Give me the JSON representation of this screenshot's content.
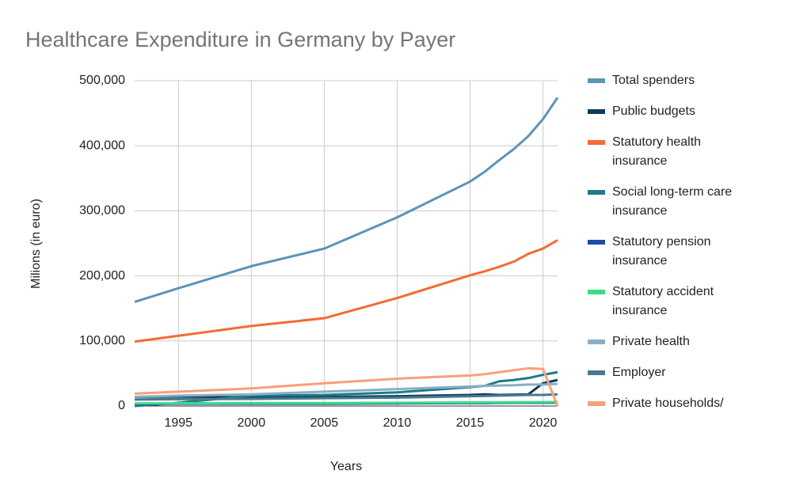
{
  "chart_data": {
    "type": "line",
    "title": "Healthcare Expenditure in Germany by Payer",
    "x_label": "Years",
    "y_label": "Milions (in euro)",
    "x": [
      1992,
      1995,
      2000,
      2005,
      2010,
      2015,
      2016,
      2017,
      2018,
      2019,
      2020,
      2021
    ],
    "xlim": [
      1992,
      2021
    ],
    "xticks": [
      1995,
      2000,
      2005,
      2010,
      2015,
      2020
    ],
    "ylim": [
      0,
      500000
    ],
    "yticks": [
      0,
      {
        "value": 100000,
        "label": "100,000"
      },
      {
        "value": 200000,
        "label": "200,000"
      },
      {
        "value": 300000,
        "label": "300,000"
      },
      {
        "value": 400000,
        "label": "400,000"
      },
      {
        "value": 500000,
        "label": "500,000"
      }
    ],
    "grid": true,
    "series": [
      {
        "name": "Total spenders",
        "color": "#5b95b5",
        "values": [
          160000,
          181000,
          215000,
          242000,
          290000,
          345000,
          360000,
          378000,
          395000,
          415000,
          441000,
          474000
        ]
      },
      {
        "name": "Public budgets",
        "color": "#0b3c5d",
        "values": [
          14000,
          14500,
          13500,
          14000,
          15000,
          17000,
          18000,
          17000,
          17500,
          18000,
          35000,
          40000
        ]
      },
      {
        "name": "Statutory health insurance",
        "color": "#f46a35",
        "values": [
          99000,
          108000,
          123000,
          135000,
          166000,
          201000,
          207000,
          214000,
          222000,
          234000,
          242000,
          255000
        ]
      },
      {
        "name": "Social long-term care insurance",
        "color": "#1f7a8c",
        "values": [
          0,
          5000,
          16000,
          17000,
          21000,
          29000,
          31000,
          38000,
          40000,
          43000,
          48000,
          52000
        ]
      },
      {
        "name": "Statutory pension insurance",
        "color": "#1c4aa6",
        "values": [
          3000,
          3500,
          3500,
          3500,
          4000,
          4500,
          4500,
          4800,
          5000,
          5000,
          5000,
          5200
        ]
      },
      {
        "name": "Statutory accident insurance",
        "color": "#3ddc84",
        "values": [
          4000,
          4200,
          4500,
          4500,
          5000,
          5500,
          5600,
          5700,
          5800,
          6000,
          6000,
          6200
        ]
      },
      {
        "name": "Private health",
        "color": "#8aaec4",
        "values": [
          14000,
          16000,
          18000,
          22000,
          26000,
          30000,
          31000,
          31500,
          32000,
          33000,
          33000,
          34000
        ]
      },
      {
        "name": "Employer",
        "color": "#4a7a8c",
        "values": [
          10000,
          10500,
          11000,
          12000,
          13000,
          15000,
          15500,
          16000,
          16500,
          17000,
          17000,
          18000
        ]
      },
      {
        "name": "Private households/",
        "color": "#f7a07a",
        "values": [
          19000,
          22000,
          27000,
          35000,
          42000,
          47000,
          49000,
          52000,
          55000,
          58000,
          57000,
          0
        ]
      }
    ]
  }
}
